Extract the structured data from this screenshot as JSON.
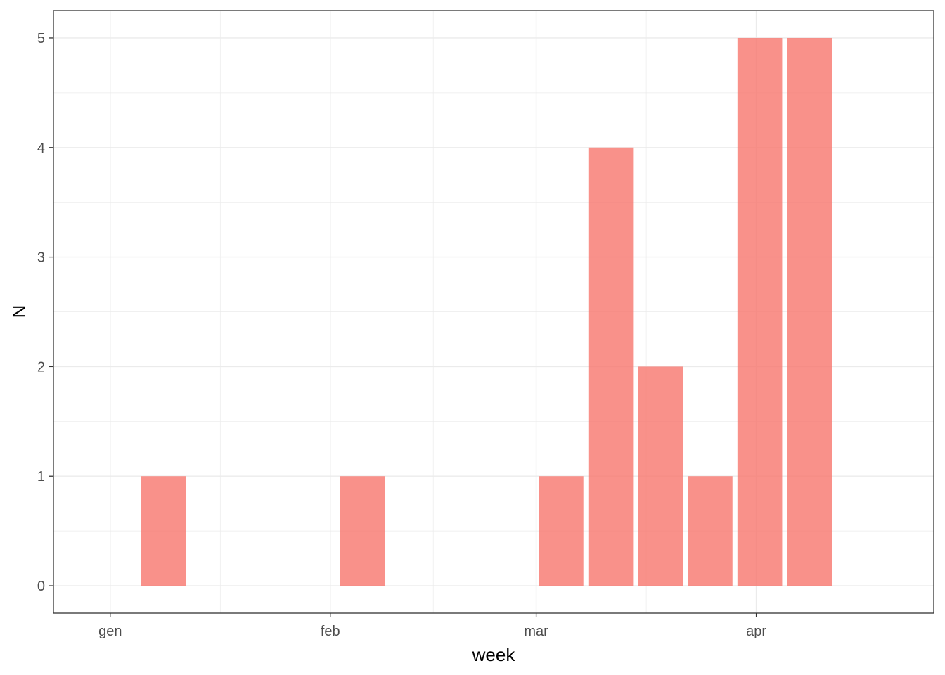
{
  "chart_data": {
    "type": "bar",
    "xlabel": "week",
    "ylabel": "N",
    "x_axis": {
      "type": "date",
      "tick_labels": [
        "gen",
        "feb",
        "mar",
        "apr"
      ],
      "tick_dates": [
        "2020-01-01",
        "2020-02-01",
        "2020-03-01",
        "2020-04-01"
      ],
      "range": [
        "2019-12-24",
        "2020-04-26"
      ]
    },
    "ylim": [
      -0.25,
      5.25
    ],
    "y_ticks": [
      0,
      1,
      2,
      3,
      4,
      5
    ],
    "grid": true,
    "legend": "none",
    "bar_color": "#F8766D",
    "bars": [
      {
        "week": "2020-01-05",
        "value": 1
      },
      {
        "week": "2020-02-02",
        "value": 1
      },
      {
        "week": "2020-03-01",
        "value": 1
      },
      {
        "week": "2020-03-08",
        "value": 4
      },
      {
        "week": "2020-03-15",
        "value": 2
      },
      {
        "week": "2020-03-22",
        "value": 1
      },
      {
        "week": "2020-03-29",
        "value": 5
      },
      {
        "week": "2020-04-05",
        "value": 5
      }
    ]
  }
}
